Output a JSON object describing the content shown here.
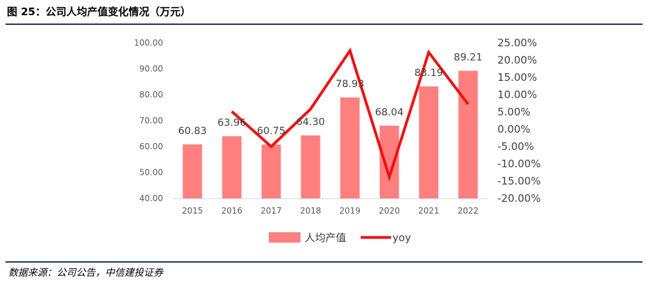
{
  "header": {
    "title": "图 25：公司人均产值变化情况（万元）"
  },
  "footer": {
    "source": "数据来源：公司公告，中信建投证券"
  },
  "colors": {
    "bar": "#ff7f7f",
    "line": "#ee1111",
    "rule": "#1f3864"
  },
  "chart_data": {
    "type": "bar",
    "title": "图 25：公司人均产值变化情况（万元）",
    "categories": [
      "2015",
      "2016",
      "2017",
      "2018",
      "2019",
      "2020",
      "2021",
      "2022"
    ],
    "series": [
      {
        "name": "人均产值",
        "type": "bar",
        "axis": "left",
        "values": [
          60.83,
          63.96,
          60.75,
          64.3,
          78.93,
          68.04,
          83.19,
          89.21
        ],
        "labels": [
          "60.83",
          "63.96",
          "60.75",
          "64.30",
          "78.93",
          "68.04",
          "83.19",
          "89.21"
        ]
      },
      {
        "name": "yoy",
        "type": "line",
        "axis": "right",
        "values": [
          null,
          5.15,
          -5.02,
          5.84,
          22.75,
          -13.8,
          22.27,
          7.24
        ]
      }
    ],
    "ylim": [
      40,
      100
    ],
    "yticks": [
      "40.00",
      "50.00",
      "60.00",
      "70.00",
      "80.00",
      "90.00",
      "100.00"
    ],
    "y2lim": [
      -20,
      25
    ],
    "y2ticks": [
      "-20.00%",
      "-15.00%",
      "-10.00%",
      "-5.00%",
      "0.00%",
      "5.00%",
      "10.00%",
      "15.00%",
      "20.00%",
      "25.00%"
    ],
    "legend_position": "bottom",
    "grid": false
  }
}
